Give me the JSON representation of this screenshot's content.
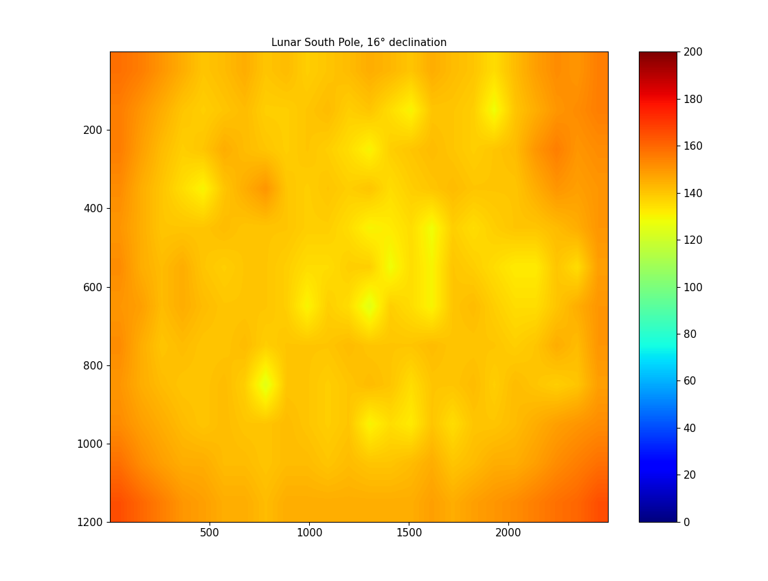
{
  "chart_data": {
    "type": "heatmap",
    "title": "Lunar South Pole, 16° declination",
    "color": "jet",
    "xlim": [
      0,
      2500
    ],
    "ylim": [
      1200,
      0
    ],
    "xticks": [
      500,
      1000,
      1500,
      2000
    ],
    "yticks": [
      200,
      400,
      600,
      800,
      1000,
      1200
    ],
    "colorbar_range": [
      0,
      200
    ],
    "colorbar_ticks": [
      0,
      20,
      40,
      60,
      80,
      100,
      120,
      140,
      160,
      180,
      200
    ],
    "cells": [
      [
        158,
        155,
        150,
        145,
        140,
        142,
        145,
        140,
        142,
        138,
        140,
        142,
        145,
        143,
        140,
        145,
        142,
        140,
        135,
        142,
        148,
        152,
        150,
        155
      ],
      [
        155,
        150,
        145,
        140,
        138,
        140,
        142,
        138,
        138,
        140,
        142,
        138,
        140,
        135,
        130,
        140,
        140,
        138,
        128,
        140,
        145,
        150,
        152,
        155
      ],
      [
        155,
        148,
        142,
        138,
        140,
        145,
        142,
        140,
        138,
        140,
        138,
        135,
        130,
        138,
        140,
        142,
        140,
        138,
        140,
        142,
        150,
        155,
        150,
        152
      ],
      [
        152,
        145,
        140,
        135,
        130,
        140,
        145,
        150,
        140,
        138,
        140,
        138,
        140,
        135,
        138,
        140,
        142,
        140,
        140,
        140,
        145,
        150,
        148,
        150
      ],
      [
        150,
        145,
        140,
        140,
        140,
        142,
        140,
        140,
        140,
        138,
        138,
        135,
        130,
        132,
        135,
        128,
        138,
        135,
        138,
        140,
        140,
        142,
        145,
        150
      ],
      [
        152,
        145,
        142,
        145,
        140,
        138,
        140,
        140,
        138,
        135,
        135,
        138,
        138,
        128,
        135,
        130,
        140,
        138,
        135,
        132,
        132,
        140,
        135,
        148
      ],
      [
        150,
        148,
        142,
        145,
        142,
        140,
        140,
        140,
        138,
        130,
        138,
        135,
        125,
        138,
        135,
        130,
        140,
        142,
        138,
        135,
        135,
        140,
        145,
        150
      ],
      [
        152,
        145,
        140,
        142,
        140,
        140,
        142,
        138,
        140,
        140,
        140,
        142,
        140,
        140,
        140,
        142,
        140,
        140,
        140,
        138,
        140,
        145,
        142,
        150
      ],
      [
        150,
        145,
        142,
        140,
        140,
        142,
        138,
        125,
        140,
        140,
        138,
        140,
        142,
        140,
        135,
        140,
        140,
        142,
        138,
        142,
        140,
        138,
        140,
        148
      ],
      [
        152,
        148,
        145,
        142,
        140,
        142,
        140,
        140,
        142,
        140,
        138,
        140,
        130,
        135,
        132,
        140,
        135,
        140,
        140,
        142,
        145,
        148,
        150,
        152
      ],
      [
        158,
        152,
        148,
        145,
        145,
        142,
        142,
        140,
        142,
        142,
        140,
        142,
        140,
        140,
        142,
        145,
        140,
        142,
        145,
        145,
        148,
        152,
        155,
        158
      ],
      [
        165,
        160,
        155,
        150,
        148,
        145,
        145,
        142,
        145,
        145,
        145,
        145,
        145,
        145,
        145,
        148,
        145,
        148,
        150,
        152,
        155,
        158,
        160,
        165
      ]
    ]
  }
}
